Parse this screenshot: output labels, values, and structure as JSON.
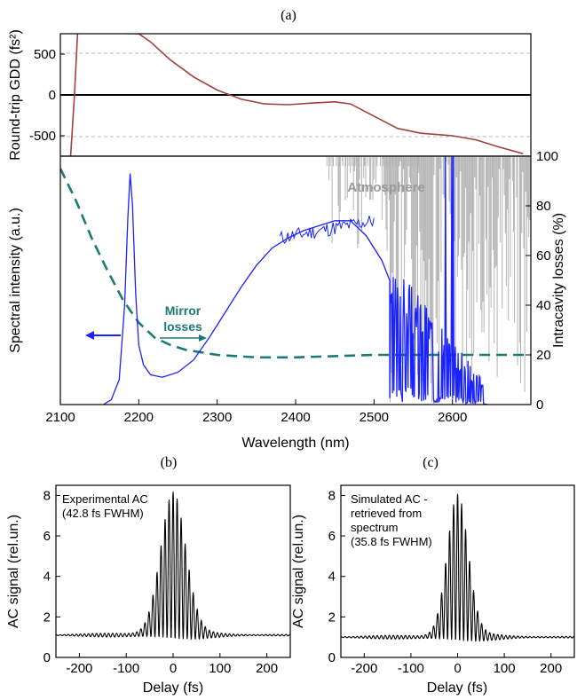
{
  "panel_labels": {
    "a": "(a)",
    "b": "(b)",
    "c": "(c)"
  },
  "colors": {
    "gdd": "#a0403f",
    "spectrum": "#1a22ff",
    "mirror": "#1b7a75",
    "atmosphere": "#b3b3b3",
    "ac": "#000000"
  },
  "chart_data": [
    {
      "id": "gdd",
      "type": "line",
      "ylabel": "Round-trip GDD (fs²)",
      "xlim": [
        2100,
        2700
      ],
      "ylim": [
        -750,
        750
      ],
      "yticks": [
        -500,
        0,
        500
      ],
      "ytick_labels": [
        "-500",
        "0",
        "500"
      ],
      "grid": "dashed at ±500",
      "series": [
        {
          "x": [
            2113,
            2118,
            2122,
            2200,
            2215,
            2240,
            2270,
            2300,
            2330,
            2360,
            2390,
            2420,
            2450,
            2470,
            2500,
            2530,
            2560,
            2600,
            2630,
            2660,
            2690
          ],
          "y": [
            -760,
            0,
            760,
            750,
            650,
            430,
            220,
            60,
            -50,
            -110,
            -120,
            -100,
            -85,
            -110,
            -260,
            -410,
            -470,
            -500,
            -550,
            -640,
            -720
          ]
        }
      ]
    },
    {
      "id": "spectrum",
      "type": "line",
      "xlabel": "Wavelength (nm)",
      "ylabel": "Spectral intensity (a.u.)",
      "y2label": "Intracavity losses (%)",
      "xlim": [
        2100,
        2700
      ],
      "xticks": [
        2100,
        2200,
        2300,
        2400,
        2500,
        2600
      ],
      "xtick_labels": [
        "2100",
        "2200",
        "2300",
        "2400",
        "2500",
        "2600"
      ],
      "y2lim": [
        0,
        100
      ],
      "y2ticks": [
        0,
        20,
        40,
        60,
        80,
        100
      ],
      "y2tick_labels": [
        "0",
        "20",
        "40",
        "60",
        "80",
        "100"
      ],
      "annotations": {
        "atmosphere": "Atmosphere",
        "mirror": [
          "Mirror",
          "losses"
        ]
      },
      "series": [
        {
          "role": "spectrum",
          "x": [
            2155,
            2165,
            2175,
            2182,
            2186,
            2189,
            2192,
            2196,
            2200,
            2206,
            2215,
            2230,
            2250,
            2270,
            2290,
            2310,
            2330,
            2350,
            2370,
            2390,
            2410,
            2430,
            2450,
            2470,
            2490,
            2510,
            2520
          ],
          "y": [
            0.0,
            0.02,
            0.1,
            0.4,
            0.75,
            0.93,
            0.8,
            0.45,
            0.24,
            0.16,
            0.12,
            0.11,
            0.13,
            0.18,
            0.27,
            0.37,
            0.47,
            0.56,
            0.63,
            0.67,
            0.7,
            0.72,
            0.74,
            0.74,
            0.68,
            0.58,
            0.5
          ]
        },
        {
          "role": "mirror losses (%)",
          "x": [
            2100,
            2120,
            2140,
            2160,
            2180,
            2200,
            2220,
            2240,
            2260,
            2300,
            2350,
            2400,
            2450,
            2500,
            2550,
            2600,
            2650,
            2700
          ],
          "y": [
            95,
            82,
            67,
            54,
            42,
            33,
            27,
            24,
            22,
            20,
            19,
            19,
            19.5,
            20,
            20,
            20,
            20,
            20
          ]
        }
      ]
    },
    {
      "id": "ac-experimental",
      "type": "line",
      "title": "Experimental AC (42.8 fs FWHM)",
      "xlabel": "Delay (fs)",
      "ylabel": "AC signal (rel.un.)",
      "xlim": [
        -250,
        250
      ],
      "ylim": [
        0,
        8.5
      ],
      "xticks": [
        -200,
        -100,
        0,
        100,
        200
      ],
      "xtick_labels": [
        "-200",
        "-100",
        "0",
        "100",
        "200"
      ],
      "yticks": [
        0,
        2,
        4,
        6,
        8
      ],
      "ytick_labels": [
        "0",
        "2",
        "4",
        "6",
        "8"
      ],
      "baseline": 1.1,
      "peak": 8.0
    },
    {
      "id": "ac-simulated",
      "type": "line",
      "title": "Simulated AC - retrieved from spectrum (35.8 fs FWHM)",
      "xlabel": "Delay (fs)",
      "ylabel": "AC signal (rel.un.)",
      "xlim": [
        -250,
        250
      ],
      "ylim": [
        0,
        8.5
      ],
      "xticks": [
        -200,
        -100,
        0,
        100,
        200
      ],
      "xtick_labels": [
        "-200",
        "-100",
        "0",
        "100",
        "200"
      ],
      "yticks": [
        0,
        2,
        4,
        6,
        8
      ],
      "ytick_labels": [
        "0",
        "2",
        "4",
        "6",
        "8"
      ],
      "baseline": 1.0,
      "peak": 7.9
    }
  ]
}
